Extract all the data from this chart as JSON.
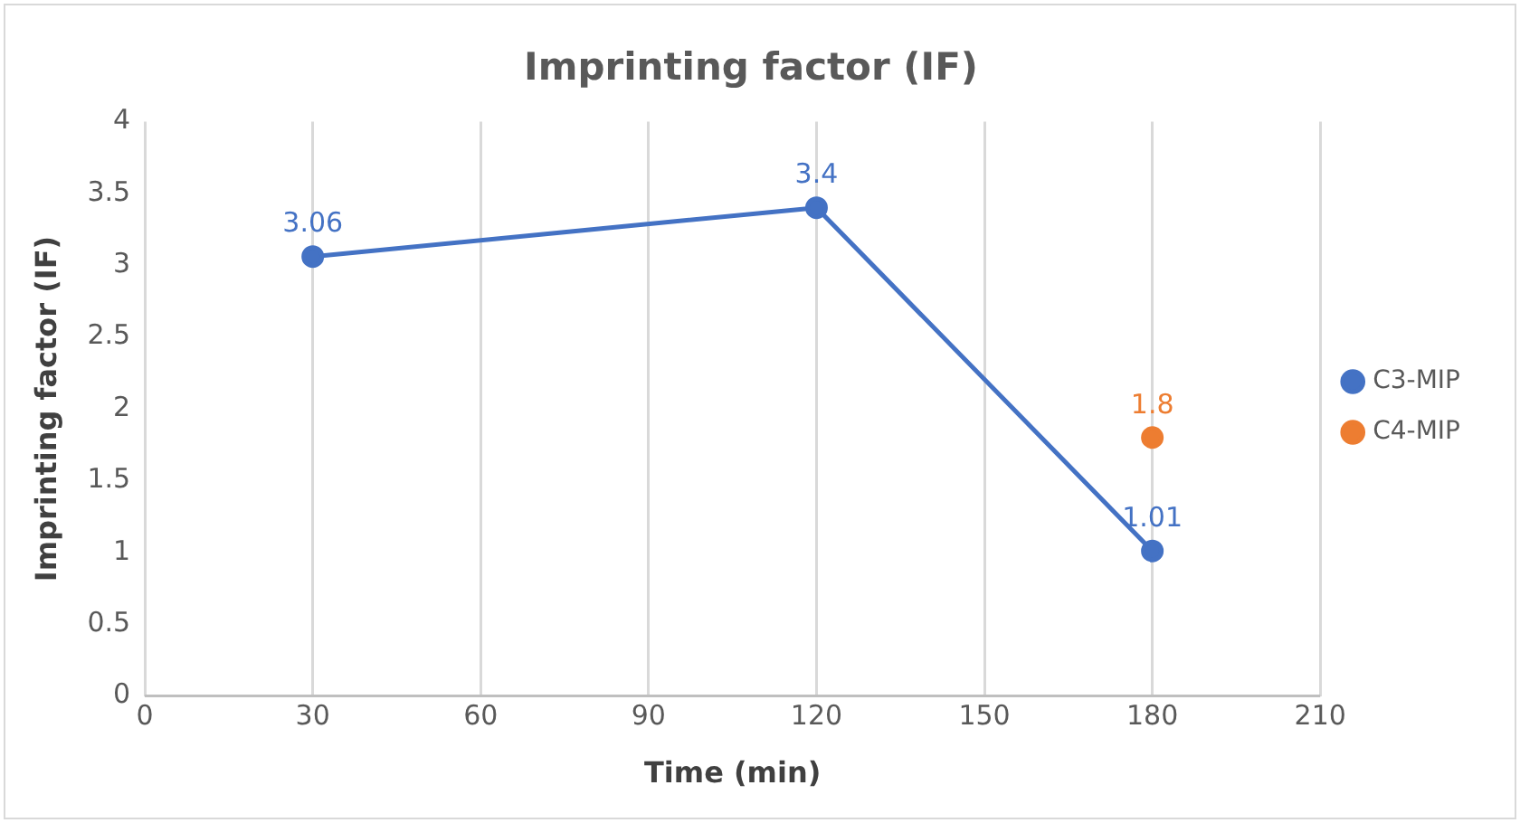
{
  "chart_data": {
    "type": "line",
    "title": "Imprinting factor (IF)",
    "xlabel": "Time (min)",
    "ylabel": "Imprinting factor (IF)",
    "xlim": [
      0,
      210
    ],
    "xticks": [
      0,
      30,
      60,
      90,
      120,
      150,
      180,
      210
    ],
    "ylim": [
      0,
      4
    ],
    "yticks": [
      0,
      0.5,
      1,
      1.5,
      2,
      2.5,
      3,
      3.5,
      4
    ],
    "series": [
      {
        "name": "C3-MIP",
        "color": "#4472c4",
        "x": [
          30,
          120,
          180
        ],
        "values": [
          3.06,
          3.4,
          1.01
        ]
      },
      {
        "name": "C4-MIP",
        "color": "#ed7d31",
        "x": [
          180
        ],
        "values": [
          1.8
        ]
      }
    ],
    "data_labels": true,
    "grid": "x",
    "legend": "right",
    "marker": "circle",
    "line_style": "solid"
  }
}
